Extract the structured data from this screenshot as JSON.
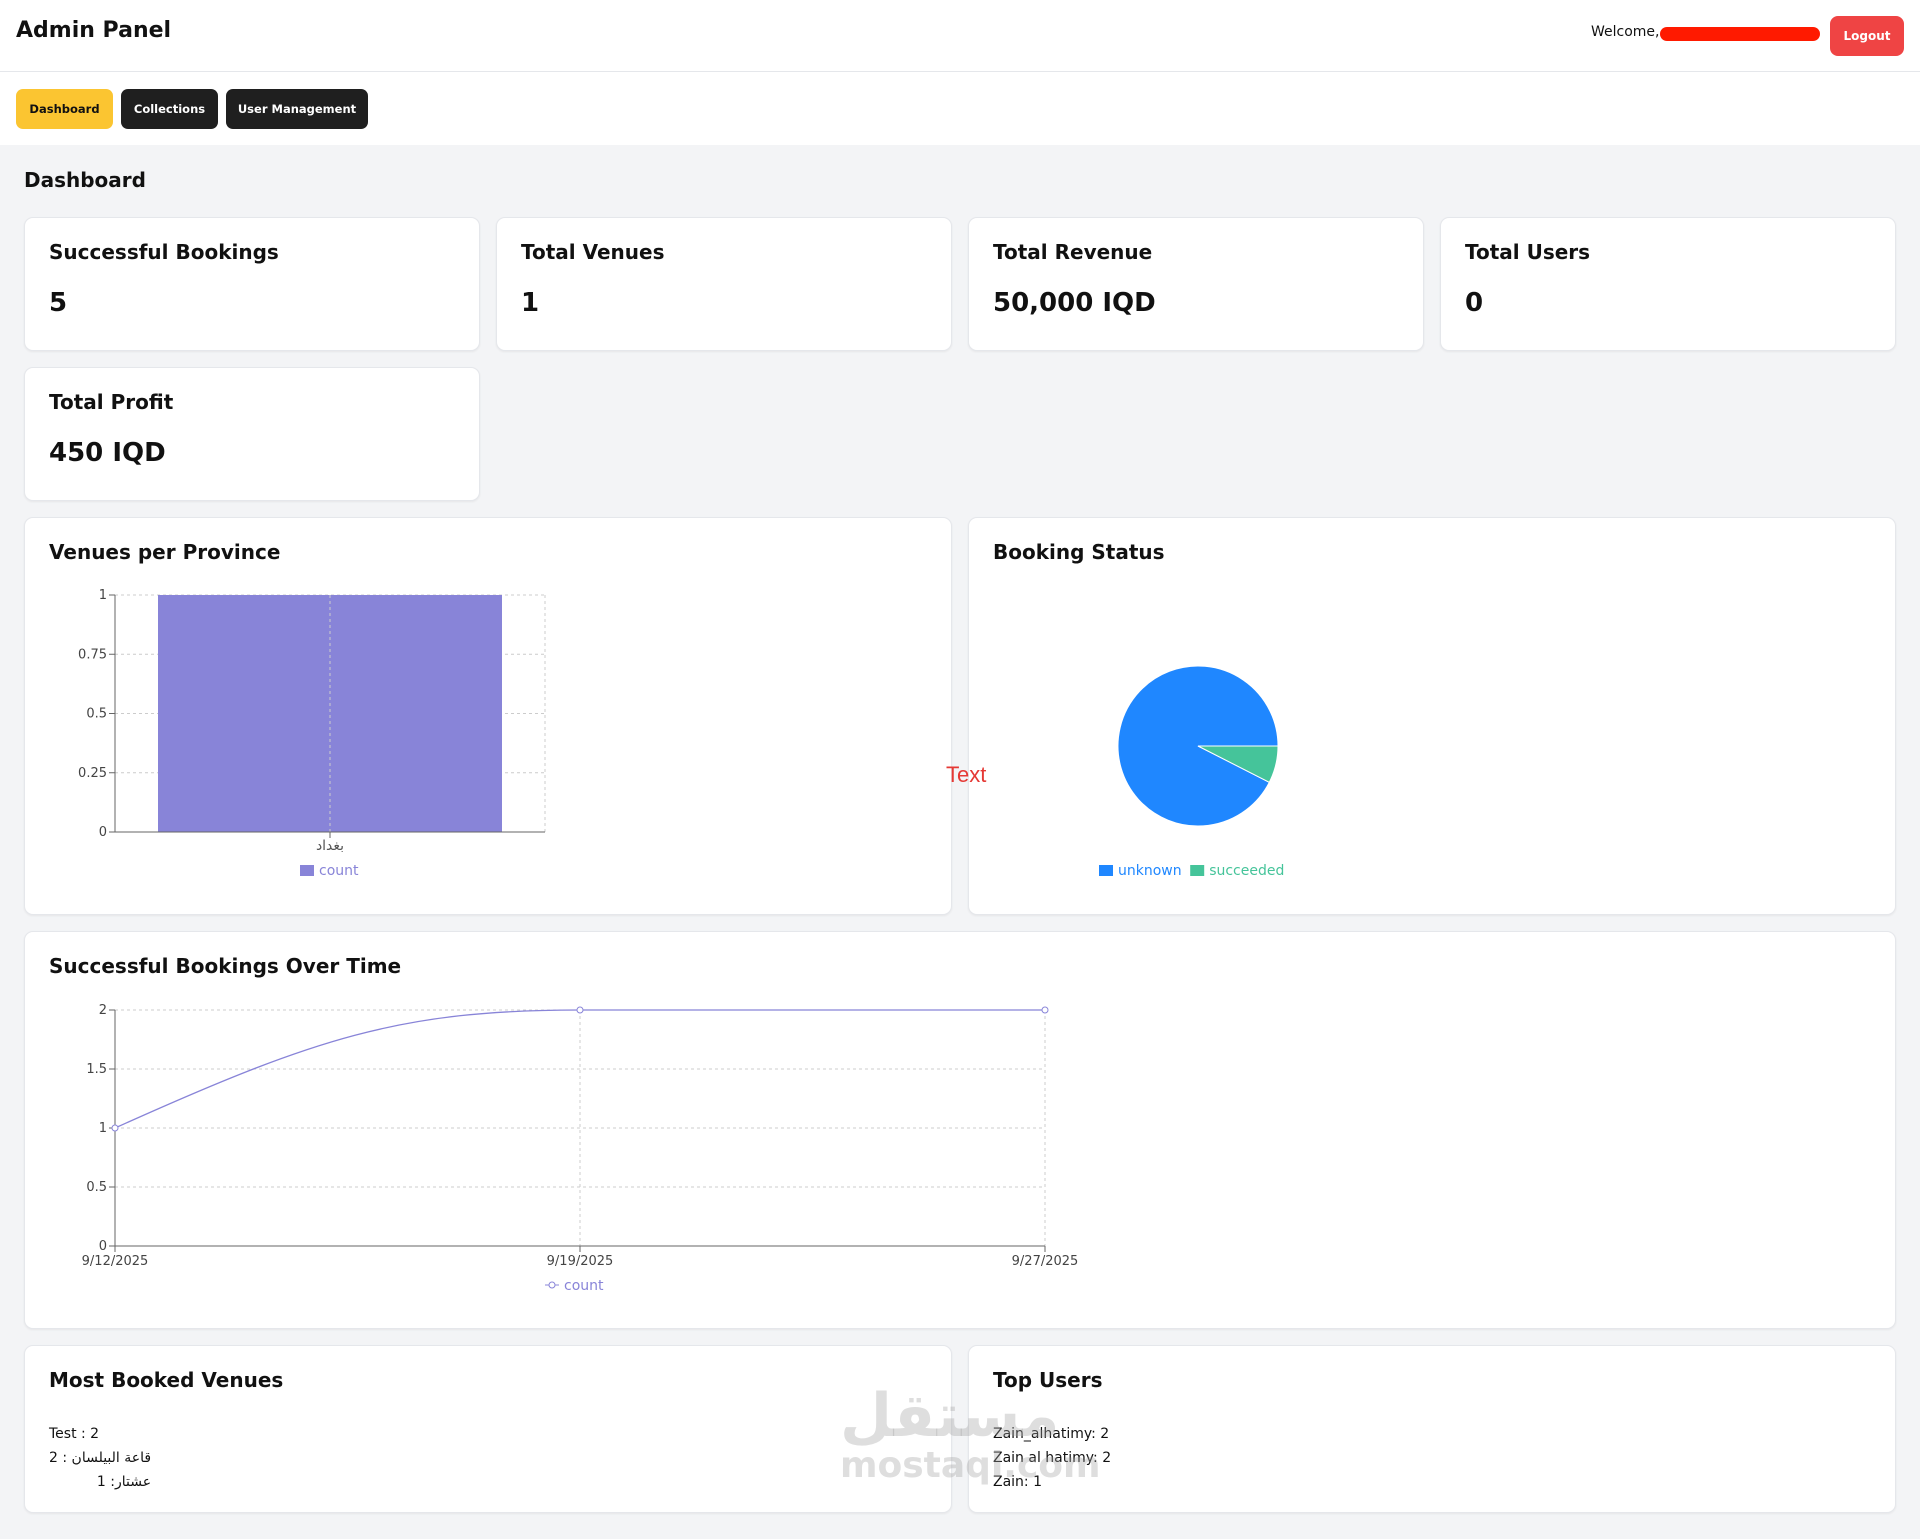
{
  "app": {
    "title": "Admin Panel",
    "welcome": "Welcome,",
    "logout": "Logout"
  },
  "nav": {
    "items": [
      "Dashboard",
      "Collections",
      "User Management"
    ],
    "active": "Dashboard"
  },
  "page": {
    "title": "Dashboard"
  },
  "stats": [
    {
      "title": "Successful Bookings",
      "value": "5"
    },
    {
      "title": "Total Venues",
      "value": "1"
    },
    {
      "title": "Total Revenue",
      "value": "50,000 IQD"
    },
    {
      "title": "Total Users",
      "value": "0"
    },
    {
      "title": "Total Profit",
      "value": "450 IQD"
    }
  ],
  "panels": {
    "venues": "Venues per Province",
    "status": "Booking Status",
    "over_time": "Successful Bookings Over Time",
    "most_booked": "Most Booked Venues",
    "top_users": "Top Users"
  },
  "most_booked": [
    "Test : 2",
    "قاعة البيلسان : 2",
    "عشتار: 1"
  ],
  "top_users": [
    "Zain_alhatimy: 2",
    "Zain al hatimy: 2",
    "Zain: 1"
  ],
  "overlay_text": "Text",
  "watermark": "مستقل",
  "watermark2": "mostaql.com",
  "colors": {
    "accent": "#fbc531",
    "logout": "#ef4444",
    "bar": "#8884d8",
    "unknown": "#1f87ff",
    "succeeded": "#45c49a"
  },
  "chart_data": [
    {
      "type": "bar",
      "categories": [
        "بغداد"
      ],
      "series": [
        {
          "name": "count",
          "values": [
            1
          ]
        }
      ],
      "ylim": [
        0,
        1
      ],
      "yticks": [
        "0",
        "0.25",
        "0.5",
        "0.75",
        "1"
      ],
      "grid": true,
      "legend": "bottom"
    },
    {
      "type": "pie",
      "labels": [
        "unknown",
        "succeeded"
      ],
      "values": [
        0.925,
        0.075
      ],
      "legend": "bottom"
    },
    {
      "type": "line",
      "x": [
        "9/12/2025",
        "9/19/2025",
        "9/27/2025"
      ],
      "series": [
        {
          "name": "count",
          "values": [
            1,
            2,
            2
          ]
        }
      ],
      "ylim": [
        0,
        2
      ],
      "yticks": [
        "0",
        "0.5",
        "1",
        "1.5",
        "2"
      ],
      "grid": true,
      "legend": "bottom"
    }
  ]
}
